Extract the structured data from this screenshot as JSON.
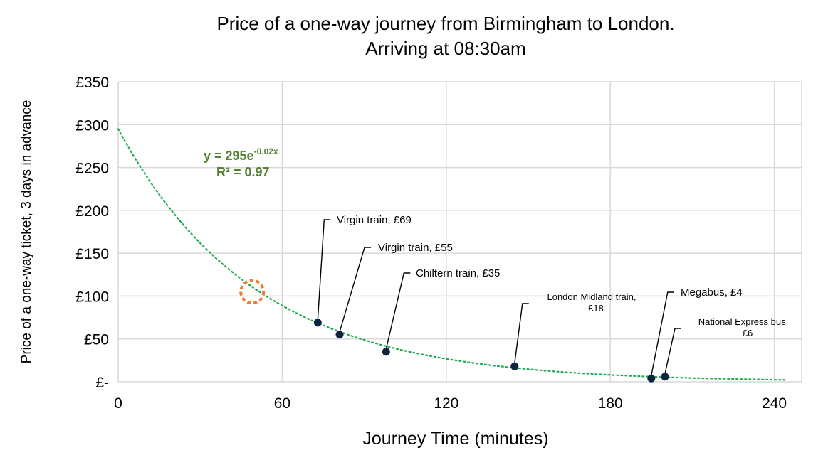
{
  "chart_data": {
    "type": "scatter",
    "title": [
      "Price of a one-way journey from Birmingham to London.",
      "Arriving at 08:30am"
    ],
    "xlabel": "Journey Time (minutes)",
    "ylabel": "Price of a one-way ticket, 3 days in advance",
    "xlim": [
      0,
      250
    ],
    "ylim": [
      0,
      350
    ],
    "x_ticks": [
      0,
      60,
      120,
      180,
      240
    ],
    "y_ticks": [
      0,
      50,
      100,
      150,
      200,
      250,
      300,
      350
    ],
    "y_tick_labels": [
      "£-",
      "£50",
      "£100",
      "£150",
      "£200",
      "£250",
      "£300",
      "£350"
    ],
    "grid": true,
    "points": [
      {
        "x": 73,
        "y": 69,
        "label": [
          "Virgin train,  £69"
        ]
      },
      {
        "x": 81,
        "y": 55,
        "label": [
          "Virgin train,  £55"
        ]
      },
      {
        "x": 98,
        "y": 35,
        "label": [
          "Chiltern train,  £35"
        ]
      },
      {
        "x": 145,
        "y": 18,
        "label": [
          "London Midland train,",
          "£18"
        ]
      },
      {
        "x": 195,
        "y": 4,
        "label": [
          "Megabus,  £4"
        ]
      },
      {
        "x": 200,
        "y": 6,
        "label": [
          "National Express bus,",
          "£6"
        ]
      }
    ],
    "trendline": {
      "type": "exponential",
      "a": 295,
      "b": -0.02,
      "equation_base": "y = 295e",
      "equation_exp": "-0.02x",
      "r2": "R² = 0.97"
    },
    "highlight": {
      "x": 49,
      "y": 105
    },
    "colors": {
      "points": "#0d2440",
      "trend": "#1faa50",
      "highlight": "#ed7d31",
      "equation": "#548235",
      "grid": "#d9d9d9"
    }
  }
}
